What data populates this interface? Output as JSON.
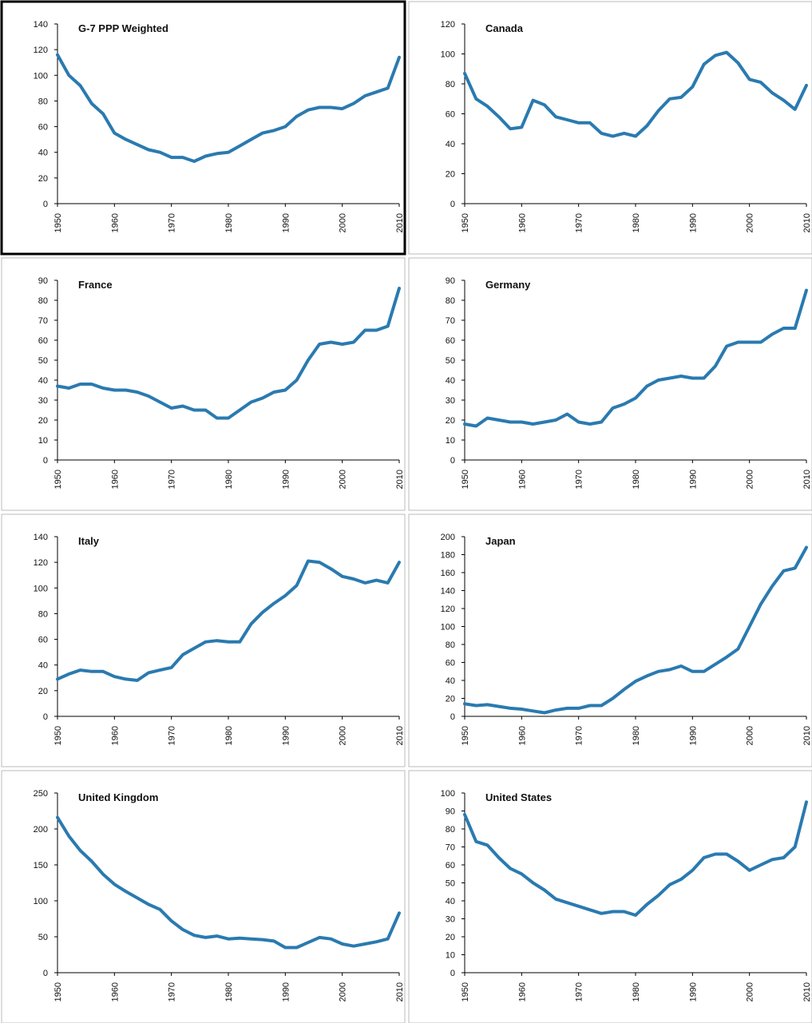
{
  "chart_data": [
    {
      "type": "line",
      "title": "G-7 PPP Weighted",
      "color": "#2a7ab0",
      "xlim": [
        1950,
        2010
      ],
      "xticks": [
        1950,
        1960,
        1970,
        1980,
        1990,
        2000,
        2010
      ],
      "ylim": [
        0,
        140
      ],
      "yticks": [
        0,
        20,
        40,
        60,
        80,
        100,
        120,
        140
      ],
      "x": [
        1950,
        1952,
        1954,
        1956,
        1958,
        1960,
        1962,
        1964,
        1966,
        1968,
        1970,
        1972,
        1974,
        1976,
        1978,
        1980,
        1982,
        1984,
        1986,
        1988,
        1990,
        1992,
        1994,
        1996,
        1998,
        2000,
        2002,
        2004,
        2006,
        2008,
        2010
      ],
      "values": [
        116,
        100,
        92,
        78,
        70,
        55,
        50,
        46,
        42,
        40,
        36,
        36,
        33,
        37,
        39,
        40,
        45,
        50,
        55,
        57,
        60,
        68,
        73,
        75,
        75,
        74,
        78,
        84,
        87,
        90,
        114
      ]
    },
    {
      "type": "line",
      "title": "Canada",
      "color": "#2a7ab0",
      "xlim": [
        1950,
        2010
      ],
      "xticks": [
        1950,
        1960,
        1970,
        1980,
        1990,
        2000,
        2010
      ],
      "ylim": [
        0,
        120
      ],
      "yticks": [
        0,
        20,
        40,
        60,
        80,
        100,
        120
      ],
      "x": [
        1950,
        1952,
        1954,
        1956,
        1958,
        1960,
        1962,
        1964,
        1966,
        1968,
        1970,
        1972,
        1974,
        1976,
        1978,
        1980,
        1982,
        1984,
        1986,
        1988,
        1990,
        1992,
        1994,
        1996,
        1998,
        2000,
        2002,
        2004,
        2006,
        2008,
        2010
      ],
      "values": [
        87,
        70,
        65,
        58,
        50,
        51,
        69,
        66,
        58,
        56,
        54,
        54,
        47,
        45,
        47,
        45,
        52,
        62,
        70,
        71,
        78,
        93,
        99,
        101,
        94,
        83,
        81,
        74,
        69,
        63,
        79
      ]
    },
    {
      "type": "line",
      "title": "France",
      "color": "#2a7ab0",
      "xlim": [
        1950,
        2010
      ],
      "xticks": [
        1950,
        1960,
        1970,
        1980,
        1990,
        2000,
        2010
      ],
      "ylim": [
        0,
        90
      ],
      "yticks": [
        0,
        10,
        20,
        30,
        40,
        50,
        60,
        70,
        80,
        90
      ],
      "x": [
        1950,
        1952,
        1954,
        1956,
        1958,
        1960,
        1962,
        1964,
        1966,
        1968,
        1970,
        1972,
        1974,
        1976,
        1978,
        1980,
        1982,
        1984,
        1986,
        1988,
        1990,
        1992,
        1994,
        1996,
        1998,
        2000,
        2002,
        2004,
        2006,
        2008,
        2010
      ],
      "values": [
        37,
        36,
        38,
        38,
        36,
        35,
        35,
        34,
        32,
        29,
        26,
        27,
        25,
        25,
        21,
        21,
        25,
        29,
        31,
        34,
        35,
        40,
        50,
        58,
        59,
        58,
        59,
        65,
        65,
        67,
        86
      ]
    },
    {
      "type": "line",
      "title": "Germany",
      "color": "#2a7ab0",
      "xlim": [
        1950,
        2010
      ],
      "xticks": [
        1950,
        1960,
        1970,
        1980,
        1990,
        2000,
        2010
      ],
      "ylim": [
        0,
        90
      ],
      "yticks": [
        0,
        10,
        20,
        30,
        40,
        50,
        60,
        70,
        80,
        90
      ],
      "x": [
        1950,
        1952,
        1954,
        1956,
        1958,
        1960,
        1962,
        1964,
        1966,
        1968,
        1970,
        1972,
        1974,
        1976,
        1978,
        1980,
        1982,
        1984,
        1986,
        1988,
        1990,
        1992,
        1994,
        1996,
        1998,
        2000,
        2002,
        2004,
        2006,
        2008,
        2010
      ],
      "values": [
        18,
        17,
        21,
        20,
        19,
        19,
        18,
        19,
        20,
        23,
        19,
        18,
        19,
        26,
        28,
        31,
        37,
        40,
        41,
        42,
        41,
        41,
        47,
        57,
        59,
        59,
        59,
        63,
        66,
        66,
        85
      ]
    },
    {
      "type": "line",
      "title": "Italy",
      "color": "#2a7ab0",
      "xlim": [
        1950,
        2010
      ],
      "xticks": [
        1950,
        1960,
        1970,
        1980,
        1990,
        2000,
        2010
      ],
      "ylim": [
        0,
        140
      ],
      "yticks": [
        0,
        20,
        40,
        60,
        80,
        100,
        120,
        140
      ],
      "x": [
        1950,
        1952,
        1954,
        1956,
        1958,
        1960,
        1962,
        1964,
        1966,
        1968,
        1970,
        1972,
        1974,
        1976,
        1978,
        1980,
        1982,
        1984,
        1986,
        1988,
        1990,
        1992,
        1994,
        1996,
        1998,
        2000,
        2002,
        2004,
        2006,
        2008,
        2010
      ],
      "values": [
        29,
        33,
        36,
        35,
        35,
        31,
        29,
        28,
        34,
        36,
        38,
        48,
        53,
        58,
        59,
        58,
        58,
        72,
        81,
        88,
        94,
        102,
        121,
        120,
        115,
        109,
        107,
        104,
        106,
        104,
        120
      ]
    },
    {
      "type": "line",
      "title": "Japan",
      "color": "#2a7ab0",
      "xlim": [
        1950,
        2010
      ],
      "xticks": [
        1950,
        1960,
        1970,
        1980,
        1990,
        2000,
        2010
      ],
      "ylim": [
        0,
        200
      ],
      "yticks": [
        0,
        20,
        40,
        60,
        80,
        100,
        120,
        140,
        160,
        180,
        200
      ],
      "x": [
        1950,
        1952,
        1954,
        1956,
        1958,
        1960,
        1962,
        1964,
        1966,
        1968,
        1970,
        1972,
        1974,
        1976,
        1978,
        1980,
        1982,
        1984,
        1986,
        1988,
        1990,
        1992,
        1994,
        1996,
        1998,
        2000,
        2002,
        2004,
        2006,
        2008,
        2010
      ],
      "values": [
        14,
        12,
        13,
        11,
        9,
        8,
        6,
        4,
        7,
        9,
        9,
        12,
        12,
        20,
        30,
        39,
        45,
        50,
        52,
        56,
        50,
        50,
        58,
        66,
        75,
        100,
        125,
        145,
        162,
        165,
        188
      ]
    },
    {
      "type": "line",
      "title": "United Kingdom",
      "color": "#2a7ab0",
      "xlim": [
        1950,
        2010
      ],
      "xticks": [
        1950,
        1960,
        1970,
        1980,
        1990,
        2000,
        2010
      ],
      "ylim": [
        0,
        250
      ],
      "yticks": [
        0,
        50,
        100,
        150,
        200,
        250
      ],
      "x": [
        1950,
        1952,
        1954,
        1956,
        1958,
        1960,
        1962,
        1964,
        1966,
        1968,
        1970,
        1972,
        1974,
        1976,
        1978,
        1980,
        1982,
        1984,
        1986,
        1988,
        1990,
        1992,
        1994,
        1996,
        1998,
        2000,
        2002,
        2004,
        2006,
        2008,
        2010
      ],
      "values": [
        216,
        190,
        170,
        155,
        137,
        123,
        113,
        104,
        95,
        88,
        72,
        60,
        52,
        49,
        51,
        47,
        48,
        47,
        46,
        44,
        35,
        35,
        42,
        49,
        47,
        40,
        37,
        40,
        43,
        47,
        83
      ]
    },
    {
      "type": "line",
      "title": "United States",
      "color": "#2a7ab0",
      "xlim": [
        1950,
        2010
      ],
      "xticks": [
        1950,
        1960,
        1970,
        1980,
        1990,
        2000,
        2010
      ],
      "ylim": [
        0,
        100
      ],
      "yticks": [
        0,
        10,
        20,
        30,
        40,
        50,
        60,
        70,
        80,
        90,
        100
      ],
      "x": [
        1950,
        1952,
        1954,
        1956,
        1958,
        1960,
        1962,
        1964,
        1966,
        1968,
        1970,
        1972,
        1974,
        1976,
        1978,
        1980,
        1982,
        1984,
        1986,
        1988,
        1990,
        1992,
        1994,
        1996,
        1998,
        2000,
        2002,
        2004,
        2006,
        2008,
        2010
      ],
      "values": [
        88,
        73,
        71,
        64,
        58,
        55,
        50,
        46,
        41,
        39,
        37,
        35,
        33,
        34,
        34,
        32,
        38,
        43,
        49,
        52,
        57,
        64,
        66,
        66,
        62,
        57,
        60,
        63,
        64,
        70,
        95
      ]
    }
  ]
}
